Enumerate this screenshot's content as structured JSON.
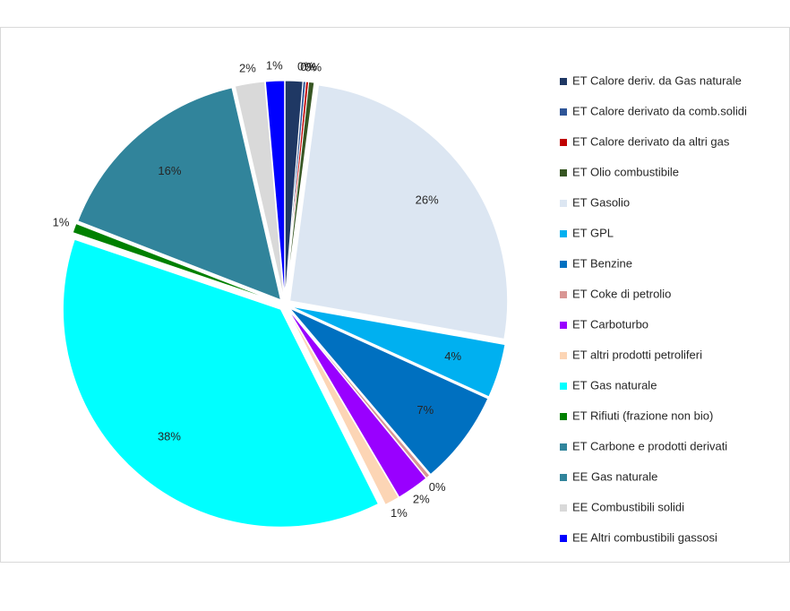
{
  "chart_data": {
    "type": "pie",
    "categories": [
      "ET Calore deriv. da Gas naturale",
      "ET Calore derivato da comb.solidi",
      "ET Calore derivato da altri gas",
      "ET Olio combustibile",
      "ET Gasolio",
      "ET GPL",
      "ET Benzine",
      "ET Coke di petrolio",
      "ET Carboturbo",
      "ET altri prodotti petroliferi",
      "ET Gas naturale",
      "ET Rifiuti (frazione non bio)",
      "ET Carbone e prodotti derivati",
      "EE Gas naturale",
      "EE Combustibili solidi",
      "EE Altri combustibili gassosi"
    ],
    "values": [
      1.3,
      0.2,
      0.2,
      0.4,
      25.7,
      4,
      7,
      0.3,
      2.4,
      1.1,
      37.6,
      0.7,
      0,
      15.5,
      2.2,
      1.4
    ],
    "value_labels": [
      null,
      "0%",
      "0%",
      "0%",
      "26%",
      "4%",
      "7%",
      "0%",
      "2%",
      "1%",
      "38%",
      "1%",
      null,
      "16%",
      "2%",
      "1%"
    ],
    "colors": [
      "#1f3864",
      "#2e5597",
      "#c00000",
      "#375623",
      "#dce6f2",
      "#00b0f0",
      "#0070c0",
      "#d99694",
      "#9900ff",
      "#fcd5b5",
      "#00ffff",
      "#008000",
      "#31859c",
      "#31849b",
      "#d9d9d9",
      "#0000ff"
    ],
    "legend": "right"
  }
}
